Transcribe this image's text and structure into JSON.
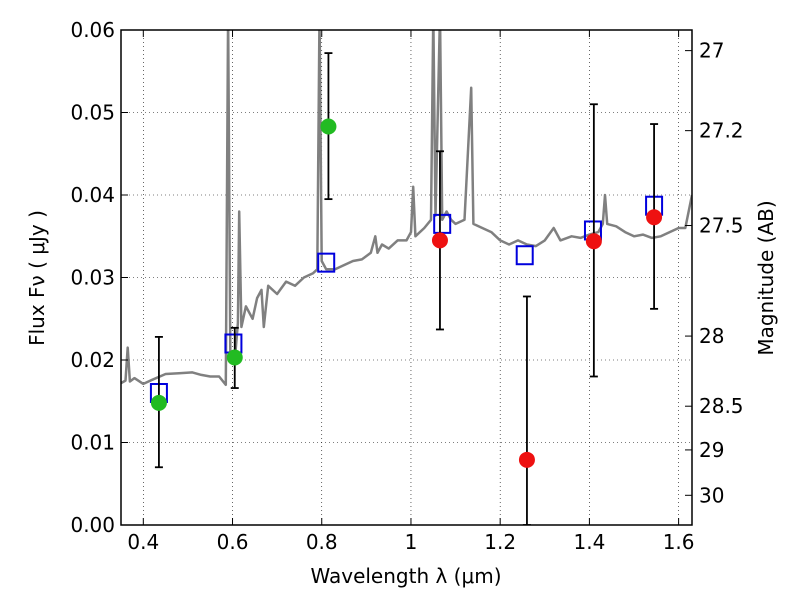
{
  "chart_data": {
    "type": "scatter",
    "xlabel": "Wavelength  λ (μm)",
    "ylabel": "Flux  Fν  ( μJy )",
    "y2label": "Magnitude (AB)",
    "xlim": [
      0.35,
      1.63
    ],
    "ylim": [
      0.0,
      0.06
    ],
    "grid": true,
    "x_ticks": [
      0.4,
      0.6,
      0.8,
      1.0,
      1.2,
      1.4,
      1.6
    ],
    "x_tick_labels": [
      "0.4",
      "0.6",
      "0.8",
      "1",
      "1.2",
      "1.4",
      "1.6"
    ],
    "y_ticks": [
      0.0,
      0.01,
      0.02,
      0.03,
      0.04,
      0.05,
      0.06
    ],
    "y_tick_labels": [
      "0.00",
      "0.01",
      "0.02",
      "0.03",
      "0.04",
      "0.05",
      "0.06"
    ],
    "y2_ticks": [
      {
        "label": "27",
        "flux": 0.0575
      },
      {
        "label": "27.2",
        "flux": 0.0478
      },
      {
        "label": "27.5",
        "flux": 0.0363
      },
      {
        "label": "28",
        "flux": 0.0229
      },
      {
        "label": "28.5",
        "flux": 0.0144
      },
      {
        "label": "29",
        "flux": 0.0091
      },
      {
        "label": "30",
        "flux": 0.0036
      }
    ],
    "series": [
      {
        "kind": "line",
        "color": "#808080",
        "points": [
          [
            0.35,
            0.0172
          ],
          [
            0.36,
            0.0175
          ],
          [
            0.365,
            0.0215
          ],
          [
            0.37,
            0.0174
          ],
          [
            0.38,
            0.0178
          ],
          [
            0.4,
            0.0171
          ],
          [
            0.42,
            0.0176
          ],
          [
            0.45,
            0.0183
          ],
          [
            0.48,
            0.0184
          ],
          [
            0.51,
            0.0185
          ],
          [
            0.53,
            0.0182
          ],
          [
            0.55,
            0.018
          ],
          [
            0.57,
            0.018
          ],
          [
            0.585,
            0.017
          ],
          [
            0.59,
            0.062
          ],
          [
            0.595,
            0.021
          ],
          [
            0.605,
            0.02
          ],
          [
            0.612,
            0.0245
          ],
          [
            0.615,
            0.038
          ],
          [
            0.62,
            0.024
          ],
          [
            0.63,
            0.0265
          ],
          [
            0.645,
            0.025
          ],
          [
            0.655,
            0.0275
          ],
          [
            0.665,
            0.0285
          ],
          [
            0.67,
            0.024
          ],
          [
            0.68,
            0.029
          ],
          [
            0.7,
            0.028
          ],
          [
            0.72,
            0.0295
          ],
          [
            0.74,
            0.029
          ],
          [
            0.76,
            0.03
          ],
          [
            0.78,
            0.0305
          ],
          [
            0.79,
            0.031
          ],
          [
            0.795,
            0.062
          ],
          [
            0.8,
            0.032
          ],
          [
            0.81,
            0.031
          ],
          [
            0.83,
            0.031
          ],
          [
            0.85,
            0.0315
          ],
          [
            0.87,
            0.032
          ],
          [
            0.89,
            0.0322
          ],
          [
            0.91,
            0.033
          ],
          [
            0.92,
            0.035
          ],
          [
            0.925,
            0.033
          ],
          [
            0.935,
            0.034
          ],
          [
            0.95,
            0.0335
          ],
          [
            0.97,
            0.0345
          ],
          [
            0.99,
            0.0345
          ],
          [
            1.0,
            0.0355
          ],
          [
            1.005,
            0.041
          ],
          [
            1.01,
            0.035
          ],
          [
            1.03,
            0.036
          ],
          [
            1.045,
            0.037
          ],
          [
            1.05,
            0.062
          ],
          [
            1.055,
            0.0375
          ],
          [
            1.065,
            0.062
          ],
          [
            1.07,
            0.037
          ],
          [
            1.08,
            0.038
          ],
          [
            1.09,
            0.037
          ],
          [
            1.1,
            0.0365
          ],
          [
            1.12,
            0.037
          ],
          [
            1.135,
            0.053
          ],
          [
            1.14,
            0.0365
          ],
          [
            1.16,
            0.036
          ],
          [
            1.18,
            0.0355
          ],
          [
            1.2,
            0.0345
          ],
          [
            1.22,
            0.034
          ],
          [
            1.24,
            0.0345
          ],
          [
            1.26,
            0.034
          ],
          [
            1.28,
            0.0338
          ],
          [
            1.3,
            0.0345
          ],
          [
            1.32,
            0.036
          ],
          [
            1.335,
            0.0345
          ],
          [
            1.36,
            0.035
          ],
          [
            1.38,
            0.0348
          ],
          [
            1.4,
            0.0352
          ],
          [
            1.42,
            0.0355
          ],
          [
            1.43,
            0.0365
          ],
          [
            1.435,
            0.04
          ],
          [
            1.44,
            0.0365
          ],
          [
            1.46,
            0.0362
          ],
          [
            1.48,
            0.0355
          ],
          [
            1.5,
            0.035
          ],
          [
            1.52,
            0.0352
          ],
          [
            1.54,
            0.0348
          ],
          [
            1.56,
            0.035
          ],
          [
            1.58,
            0.0355
          ],
          [
            1.6,
            0.036
          ],
          [
            1.615,
            0.036
          ],
          [
            1.63,
            0.04
          ]
        ]
      },
      {
        "kind": "model-squares",
        "color": "#0000dd",
        "points": [
          [
            0.435,
            0.016
          ],
          [
            0.602,
            0.022
          ],
          [
            0.81,
            0.0318
          ],
          [
            1.07,
            0.0365
          ],
          [
            1.255,
            0.0327
          ],
          [
            1.408,
            0.0357
          ],
          [
            1.545,
            0.0387
          ]
        ]
      },
      {
        "kind": "detections",
        "color": "#22bb22",
        "points": [
          {
            "x": 0.435,
            "y": 0.0148,
            "ylo": 0.007,
            "yhi": 0.0228
          },
          {
            "x": 0.605,
            "y": 0.0203,
            "ylo": 0.0166,
            "yhi": 0.0239
          },
          {
            "x": 0.815,
            "y": 0.0483,
            "ylo": 0.0395,
            "yhi": 0.0572
          }
        ]
      },
      {
        "kind": "detections",
        "color": "#ee1111",
        "points": [
          {
            "x": 1.065,
            "y": 0.0345,
            "ylo": 0.0237,
            "yhi": 0.0453
          },
          {
            "x": 1.26,
            "y": 0.0079,
            "ylo": 0.0,
            "yhi": 0.0277
          },
          {
            "x": 1.41,
            "y": 0.0344,
            "ylo": 0.018,
            "yhi": 0.051
          },
          {
            "x": 1.545,
            "y": 0.0373,
            "ylo": 0.0262,
            "yhi": 0.0486
          }
        ]
      }
    ]
  }
}
